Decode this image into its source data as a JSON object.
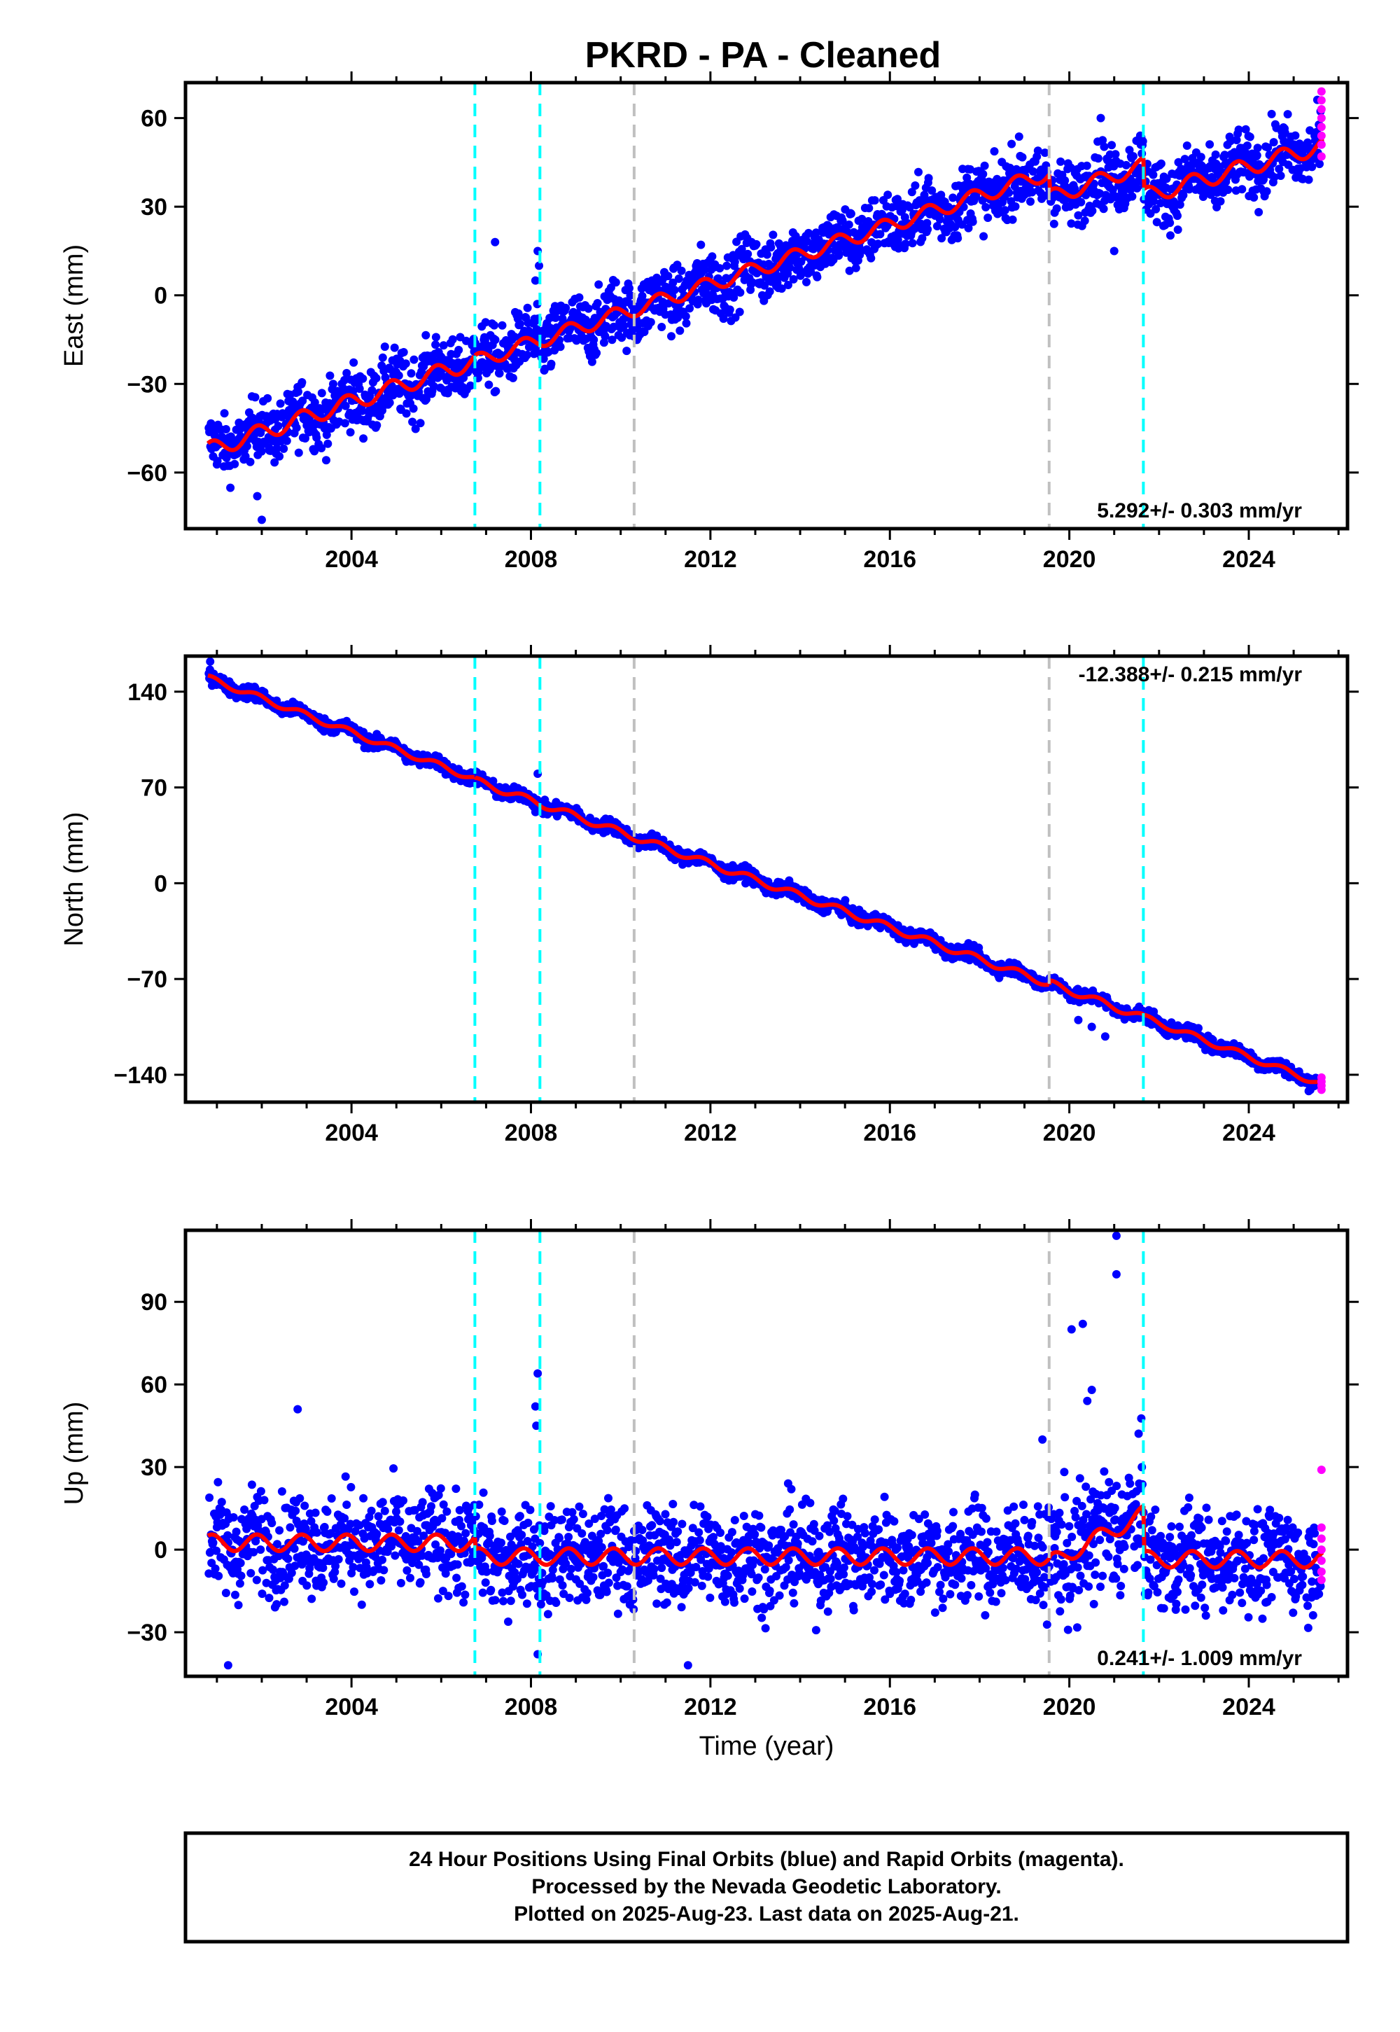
{
  "title": "PKRD  - PA - Cleaned",
  "colors": {
    "final_points": "#0000ff",
    "rapid_points": "#ff00ff",
    "model_line": "#ff0000",
    "steps_equipment": "#00ffff",
    "steps_other": "#c0c0c0",
    "frame": "#000000"
  },
  "footer": {
    "line1": "24 Hour Positions Using Final Orbits (blue) and Rapid Orbits (magenta).",
    "line2": "Processed by the Nevada Geodetic Laboratory.",
    "line3": "Plotted on 2025-Aug-23. Last data on 2025-Aug-21."
  },
  "chart_data": [
    {
      "type": "scatter",
      "component": "East",
      "ylabel": "East (mm)",
      "xlabel": "",
      "rate_label": "5.292+/- 0.303 mm/yr",
      "xlim": [
        2000.3,
        2026.2
      ],
      "ylim": [
        -79,
        72
      ],
      "xticks": [
        2004,
        2008,
        2012,
        2016,
        2020,
        2024
      ],
      "xtick_labels": [
        "2004",
        "2008",
        "2012",
        "2016",
        "2020",
        "2024"
      ],
      "yticks": [
        -60,
        -30,
        0,
        30,
        60
      ],
      "ytick_labels": [
        "−60",
        "−30",
        "0",
        "30",
        "60"
      ],
      "model": {
        "segments": [
          {
            "start": 2000.8,
            "end": 2006.75,
            "t0": 2000.8,
            "y0": -52.5,
            "rate": 5.1,
            "amp": 2.8
          },
          {
            "start": 2006.75,
            "end": 2019.55,
            "t0": 2006.75,
            "y0": -22.5,
            "rate": 5.0,
            "amp": 2.5
          },
          {
            "start": 2019.55,
            "end": 2021.65,
            "t0": 2019.55,
            "y0": 33.0,
            "rate": 5.2,
            "amp": 2.6
          },
          {
            "start": 2021.65,
            "end": 2025.65,
            "t0": 2021.65,
            "y0": 33.5,
            "rate": 4.3,
            "amp": 2.8
          }
        ]
      },
      "scatter_noise": 5.5,
      "outliers": [
        {
          "x": 2002.0,
          "y": -76
        },
        {
          "x": 2001.9,
          "y": -68
        },
        {
          "x": 2007.2,
          "y": 18
        },
        {
          "x": 2008.15,
          "y": 15
        },
        {
          "x": 2008.18,
          "y": 10
        },
        {
          "x": 2008.1,
          "y": 5
        },
        {
          "x": 2021.0,
          "y": 15
        },
        {
          "x": 2020.7,
          "y": 60
        },
        {
          "x": 2002.3,
          "y": -42
        }
      ],
      "rapid": [
        {
          "x": 2025.62,
          "y": 69
        },
        {
          "x": 2025.62,
          "y": 66
        },
        {
          "x": 2025.62,
          "y": 63
        },
        {
          "x": 2025.62,
          "y": 60
        },
        {
          "x": 2025.62,
          "y": 57
        },
        {
          "x": 2025.62,
          "y": 54
        },
        {
          "x": 2025.62,
          "y": 51
        },
        {
          "x": 2025.62,
          "y": 47
        }
      ]
    },
    {
      "type": "scatter",
      "component": "North",
      "ylabel": "North (mm)",
      "xlabel": "",
      "rate_label": "-12.388+/- 0.215 mm/yr",
      "xlim": [
        2000.3,
        2026.2
      ],
      "ylim": [
        -160,
        166
      ],
      "xticks": [
        2004,
        2008,
        2012,
        2016,
        2020,
        2024
      ],
      "xtick_labels": [
        "2004",
        "2008",
        "2012",
        "2016",
        "2020",
        "2024"
      ],
      "yticks": [
        -140,
        -70,
        0,
        70,
        140
      ],
      "ytick_labels": [
        "−140",
        "−70",
        "0",
        "70",
        "140"
      ],
      "model": {
        "segments": [
          {
            "start": 2000.8,
            "end": 2006.75,
            "t0": 2000.8,
            "y0": 150.0,
            "rate": -12.4,
            "amp": 2.2
          },
          {
            "start": 2006.75,
            "end": 2019.55,
            "t0": 2006.75,
            "y0": 75.0,
            "rate": -11.6,
            "amp": 2.5
          },
          {
            "start": 2019.55,
            "end": 2021.65,
            "t0": 2019.55,
            "y0": -73.0,
            "rate": -12.0,
            "amp": 2.5
          },
          {
            "start": 2021.65,
            "end": 2025.65,
            "t0": 2021.65,
            "y0": -98.0,
            "rate": -12.3,
            "amp": 2.2
          }
        ]
      },
      "scatter_noise": 2.5,
      "outliers": [
        {
          "x": 2008.15,
          "y": 80
        },
        {
          "x": 2008.1,
          "y": 52
        },
        {
          "x": 2020.2,
          "y": -100
        },
        {
          "x": 2020.8,
          "y": -112
        },
        {
          "x": 2020.5,
          "y": -105
        },
        {
          "x": 2000.85,
          "y": 162
        }
      ],
      "rapid": [
        {
          "x": 2025.62,
          "y": -145
        },
        {
          "x": 2025.62,
          "y": -148
        },
        {
          "x": 2025.62,
          "y": -151
        },
        {
          "x": 2025.62,
          "y": -142
        }
      ]
    },
    {
      "type": "scatter",
      "component": "Up",
      "ylabel": "Up (mm)",
      "xlabel": "Time (year)",
      "rate_label": "0.241+/- 1.009 mm/yr",
      "xlim": [
        2000.3,
        2026.2
      ],
      "ylim": [
        -46,
        116
      ],
      "xticks": [
        2004,
        2008,
        2012,
        2016,
        2020,
        2024
      ],
      "xtick_labels": [
        "2004",
        "2008",
        "2012",
        "2016",
        "2020",
        "2024"
      ],
      "yticks": [
        -30,
        0,
        30,
        60,
        90
      ],
      "ytick_labels": [
        "−30",
        "0",
        "30",
        "60",
        "90"
      ],
      "model": {
        "segments": [
          {
            "start": 2000.8,
            "end": 2006.75,
            "t0": 2000.8,
            "y0": 2.5,
            "rate": 0.0,
            "amp": 3.0
          },
          {
            "start": 2006.75,
            "end": 2019.55,
            "t0": 2006.75,
            "y0": -2.5,
            "rate": 0.0,
            "amp": 3.0
          },
          {
            "start": 2019.55,
            "end": 2021.65,
            "t0": 2019.55,
            "y0": -5.0,
            "rate": 8.5,
            "amp": 3.0
          },
          {
            "start": 2021.65,
            "end": 2025.65,
            "t0": 2021.65,
            "y0": -3.5,
            "rate": 0.0,
            "amp": 3.0
          }
        ]
      },
      "scatter_noise": 9.0,
      "outliers": [
        {
          "x": 2021.05,
          "y": 114
        },
        {
          "x": 2021.05,
          "y": 100
        },
        {
          "x": 2020.3,
          "y": 82
        },
        {
          "x": 2020.05,
          "y": 80
        },
        {
          "x": 2008.15,
          "y": 64
        },
        {
          "x": 2008.1,
          "y": 52
        },
        {
          "x": 2008.12,
          "y": 45
        },
        {
          "x": 2002.8,
          "y": 51
        },
        {
          "x": 2020.5,
          "y": 58
        },
        {
          "x": 2020.4,
          "y": 54
        },
        {
          "x": 2008.15,
          "y": -38
        },
        {
          "x": 2001.25,
          "y": -42
        },
        {
          "x": 2011.5,
          "y": -42
        },
        {
          "x": 2019.4,
          "y": 40
        }
      ],
      "rapid": [
        {
          "x": 2025.62,
          "y": 29
        },
        {
          "x": 2025.62,
          "y": 8
        },
        {
          "x": 2025.62,
          "y": 4
        },
        {
          "x": 2025.62,
          "y": 0
        },
        {
          "x": 2025.62,
          "y": -4
        },
        {
          "x": 2025.62,
          "y": -8
        },
        {
          "x": 2025.62,
          "y": -11
        }
      ]
    }
  ],
  "steps": [
    {
      "x": 2006.75,
      "kind": "equipment"
    },
    {
      "x": 2008.2,
      "kind": "equipment"
    },
    {
      "x": 2010.3,
      "kind": "other"
    },
    {
      "x": 2019.55,
      "kind": "other"
    },
    {
      "x": 2021.65,
      "kind": "equipment"
    }
  ]
}
